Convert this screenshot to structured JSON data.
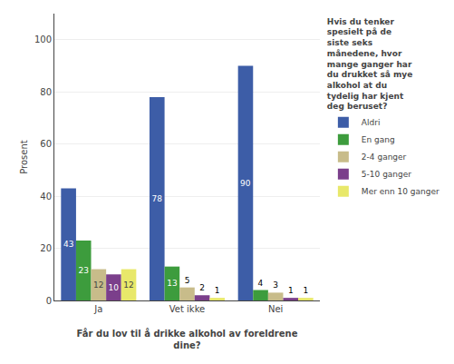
{
  "chart_data": {
    "type": "bar",
    "categories": [
      "Ja",
      "Vet ikke",
      "Nei"
    ],
    "series": [
      {
        "name": "Aldri",
        "color": "#3d5da7",
        "values": [
          43,
          78,
          90
        ]
      },
      {
        "name": "En gang",
        "color": "#3d9c3d",
        "values": [
          23,
          13,
          4
        ]
      },
      {
        "name": "2-4 ganger",
        "color": "#c8bc8a",
        "values": [
          12,
          5,
          3
        ]
      },
      {
        "name": "5-10 ganger",
        "color": "#7b3f8b",
        "values": [
          10,
          2,
          1
        ]
      },
      {
        "name": "Mer enn 10 ganger",
        "color": "#e8e86a",
        "values": [
          12,
          1,
          1
        ]
      }
    ],
    "xlabel": "Får du lov til å drikke alkohol av foreldrene\ndine?",
    "ylabel": "Prosent",
    "legend_title": "Hvis du tenker\nspesielt på de\nsiste seks\nmånedene, hvor\nmange ganger har\ndu drukket så mye\nalkohol at du\ntydelig har kjent\ndeg beruset?",
    "ylim": [
      0,
      110
    ],
    "yticks": [
      0,
      20,
      40,
      60,
      80,
      100
    ],
    "grid": true,
    "legend": "right",
    "data_labels": true
  }
}
